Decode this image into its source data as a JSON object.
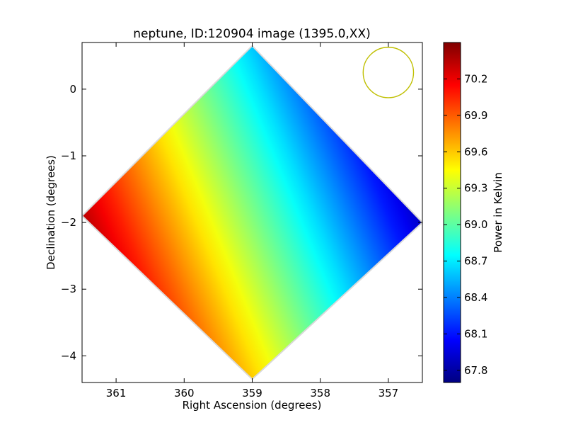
{
  "chart_data": {
    "type": "heatmap",
    "title": "neptune, ID:120904 image (1395.0,XX)",
    "xlabel": "Right Ascension (degrees)",
    "ylabel": "Declination (degrees)",
    "xlim": [
      361.5,
      356.5
    ],
    "ylim": [
      -4.4,
      0.7
    ],
    "x_ticks": [
      361,
      360,
      359,
      358,
      357
    ],
    "x_tick_labels": [
      "361",
      "360",
      "359",
      "358",
      "357"
    ],
    "y_ticks": [
      0,
      -1,
      -2,
      -3,
      -4
    ],
    "y_tick_labels": [
      "0",
      "−1",
      "−2",
      "−3",
      "−4"
    ],
    "grid": false,
    "map_region": {
      "shape": "rotated-square",
      "vertices_data": [
        [
          359.0,
          0.65
        ],
        [
          356.5,
          -2.0
        ],
        [
          359.0,
          -4.35
        ],
        [
          361.5,
          -1.9
        ]
      ]
    },
    "gradient": {
      "direction_from": [
        361.3,
        -3.2
      ],
      "direction_to": [
        356.8,
        -1.3
      ],
      "value_start": 70.5,
      "value_end": 67.9
    },
    "beam_circle": {
      "center": [
        357.0,
        0.25
      ],
      "radius_deg": 0.37,
      "color": "#bfbf00"
    },
    "colorbar": {
      "label": "Power in Kelvin",
      "min": 67.7,
      "max": 70.5,
      "ticks": [
        67.8,
        68.1,
        68.4,
        68.7,
        69.0,
        69.3,
        69.6,
        69.9,
        70.2
      ],
      "tick_labels": [
        "67.8",
        "68.1",
        "68.4",
        "68.7",
        "69.0",
        "69.3",
        "69.6",
        "69.9",
        "70.2"
      ],
      "colormap": "jet"
    }
  }
}
